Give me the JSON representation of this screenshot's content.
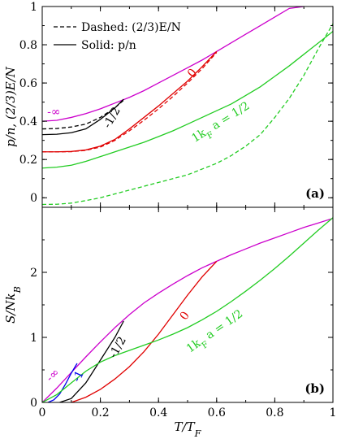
{
  "chart_data": [
    {
      "panel": "a",
      "type": "line",
      "panel_label": "(a)",
      "xlabel": "",
      "ylabel": "p/n, (2/3)E/N",
      "xlim": [
        0,
        1
      ],
      "ylim": [
        -0.05,
        1.0
      ],
      "x_ticks": [
        0,
        0.2,
        0.4,
        0.6,
        0.8,
        1
      ],
      "y_ticks": [
        0,
        0.2,
        0.4,
        0.6,
        0.8,
        1
      ],
      "y_tick_labels": [
        "0",
        "0.2",
        "0.4",
        "0.6",
        "0.8",
        "1"
      ],
      "grid": false,
      "legend": {
        "position": "top-left",
        "entries": [
          {
            "label": "Dashed: (2/3)E/N",
            "style": "dashed",
            "color": "#000000"
          },
          {
            "label": "Solid: p/n",
            "style": "solid",
            "color": "#000000"
          }
        ]
      },
      "annotations": [
        {
          "text": "-∞",
          "color": "#cc00cc",
          "x": 0.04,
          "y": 0.43,
          "rotate": 0
        },
        {
          "text": "-1/2",
          "color": "#000000",
          "x": 0.25,
          "y": 0.41,
          "rotate": -60
        },
        {
          "text": "0",
          "color": "#e00000",
          "x": 0.525,
          "y": 0.64,
          "rotate": -50
        },
        {
          "text": "1k_F a = 1/2",
          "color": "#22cc22",
          "x": 0.62,
          "y": 0.38,
          "rotate": -32
        }
      ],
      "series": [
        {
          "color": "#cc00cc",
          "style": "solid",
          "x": [
            0,
            0.05,
            0.1,
            0.15,
            0.2,
            0.25,
            0.3,
            0.35,
            0.4,
            0.45,
            0.5,
            0.55,
            0.6,
            0.65,
            0.7,
            0.75,
            0.8,
            0.85,
            0.9
          ],
          "y": [
            0.4,
            0.405,
            0.42,
            0.44,
            0.465,
            0.495,
            0.525,
            0.56,
            0.6,
            0.64,
            0.68,
            0.72,
            0.765,
            0.81,
            0.855,
            0.9,
            0.945,
            0.99,
            1.0
          ]
        },
        {
          "color": "#000000",
          "style": "solid",
          "x": [
            0,
            0.05,
            0.1,
            0.15,
            0.2,
            0.25,
            0.28
          ],
          "y": [
            0.33,
            0.332,
            0.34,
            0.36,
            0.41,
            0.47,
            0.515
          ]
        },
        {
          "color": "#000000",
          "style": "dashed",
          "x": [
            0,
            0.05,
            0.1,
            0.15,
            0.2,
            0.25,
            0.28
          ],
          "y": [
            0.36,
            0.362,
            0.37,
            0.385,
            0.42,
            0.47,
            0.51
          ]
        },
        {
          "color": "#e00000",
          "style": "solid",
          "x": [
            0,
            0.05,
            0.1,
            0.15,
            0.2,
            0.25,
            0.3,
            0.35,
            0.4,
            0.45,
            0.5,
            0.55,
            0.6
          ],
          "y": [
            0.24,
            0.24,
            0.242,
            0.25,
            0.27,
            0.305,
            0.36,
            0.42,
            0.48,
            0.545,
            0.61,
            0.685,
            0.765
          ]
        },
        {
          "color": "#e00000",
          "style": "dashed",
          "x": [
            0,
            0.05,
            0.1,
            0.15,
            0.2,
            0.25,
            0.3,
            0.35,
            0.4,
            0.45,
            0.5,
            0.55,
            0.6
          ],
          "y": [
            0.24,
            0.24,
            0.241,
            0.248,
            0.265,
            0.3,
            0.35,
            0.405,
            0.465,
            0.53,
            0.6,
            0.675,
            0.76
          ]
        },
        {
          "color": "#22cc22",
          "style": "solid",
          "x": [
            0,
            0.05,
            0.1,
            0.15,
            0.2,
            0.25,
            0.3,
            0.35,
            0.4,
            0.45,
            0.5,
            0.55,
            0.6,
            0.65,
            0.7,
            0.75,
            0.8,
            0.85,
            0.9,
            0.95,
            1.0
          ],
          "y": [
            0.155,
            0.16,
            0.17,
            0.19,
            0.215,
            0.24,
            0.265,
            0.29,
            0.32,
            0.35,
            0.385,
            0.42,
            0.455,
            0.49,
            0.535,
            0.58,
            0.635,
            0.69,
            0.75,
            0.81,
            0.87
          ]
        },
        {
          "color": "#22cc22",
          "style": "dashed",
          "x": [
            0,
            0.05,
            0.1,
            0.15,
            0.2,
            0.25,
            0.3,
            0.35,
            0.4,
            0.45,
            0.5,
            0.55,
            0.6,
            0.65,
            0.7,
            0.75,
            0.8,
            0.85,
            0.9,
            0.95,
            1.0
          ],
          "y": [
            -0.035,
            -0.034,
            -0.028,
            -0.015,
            0.0,
            0.02,
            0.04,
            0.06,
            0.08,
            0.1,
            0.12,
            0.15,
            0.18,
            0.22,
            0.27,
            0.33,
            0.42,
            0.52,
            0.64,
            0.78,
            0.91
          ]
        }
      ]
    },
    {
      "panel": "b",
      "type": "line",
      "panel_label": "(b)",
      "xlabel": "T/T_F",
      "ylabel": "S/Nk_B",
      "xlim": [
        0,
        1
      ],
      "ylim": [
        0,
        3.0
      ],
      "x_ticks": [
        0,
        0.2,
        0.4,
        0.6,
        0.8,
        1
      ],
      "x_tick_labels": [
        "0",
        "0.2",
        "0.4",
        "0.6",
        "0.8",
        "1"
      ],
      "y_ticks": [
        0,
        1,
        2
      ],
      "y_tick_labels": [
        "0",
        "1",
        "2"
      ],
      "grid": false,
      "annotations": [
        {
          "text": "-∞",
          "color": "#cc00cc",
          "x": 0.045,
          "y": 0.38,
          "rotate": -45
        },
        {
          "text": "-1",
          "color": "#0000ee",
          "x": 0.135,
          "y": 0.38,
          "rotate": -65
        },
        {
          "text": "-1/2",
          "color": "#000000",
          "x": 0.27,
          "y": 0.82,
          "rotate": -60
        },
        {
          "text": "0",
          "color": "#e00000",
          "x": 0.5,
          "y": 1.3,
          "rotate": -55
        },
        {
          "text": "1k_F a = 1/2",
          "color": "#22cc22",
          "x": 0.6,
          "y": 1.05,
          "rotate": -35
        }
      ],
      "series": [
        {
          "color": "#cc00cc",
          "style": "solid",
          "x": [
            0,
            0.05,
            0.1,
            0.15,
            0.2,
            0.25,
            0.3,
            0.35,
            0.4,
            0.45,
            0.5,
            0.55,
            0.6,
            0.65,
            0.7,
            0.75,
            0.8,
            0.85,
            0.9,
            0.95,
            1.0
          ],
          "y": [
            0.0,
            0.22,
            0.46,
            0.7,
            0.93,
            1.15,
            1.35,
            1.53,
            1.68,
            1.82,
            1.95,
            2.07,
            2.17,
            2.27,
            2.36,
            2.45,
            2.53,
            2.61,
            2.69,
            2.76,
            2.83
          ]
        },
        {
          "color": "#0000ee",
          "style": "solid",
          "x": [
            0.02,
            0.04,
            0.06,
            0.08,
            0.1,
            0.12
          ],
          "y": [
            0.0,
            0.04,
            0.13,
            0.28,
            0.45,
            0.6
          ]
        },
        {
          "color": "#000000",
          "style": "solid",
          "x": [
            0.06,
            0.1,
            0.15,
            0.2,
            0.25,
            0.28
          ],
          "y": [
            0.0,
            0.06,
            0.3,
            0.65,
            1.0,
            1.25
          ]
        },
        {
          "color": "#e00000",
          "style": "solid",
          "x": [
            0.1,
            0.15,
            0.2,
            0.25,
            0.3,
            0.35,
            0.4,
            0.45,
            0.5,
            0.55,
            0.6
          ],
          "y": [
            0.0,
            0.08,
            0.2,
            0.36,
            0.55,
            0.78,
            1.05,
            1.35,
            1.65,
            1.93,
            2.17
          ]
        },
        {
          "color": "#22cc22",
          "style": "solid",
          "x": [
            0,
            0.05,
            0.1,
            0.15,
            0.2,
            0.25,
            0.3,
            0.35,
            0.4,
            0.45,
            0.5,
            0.55,
            0.6,
            0.65,
            0.7,
            0.75,
            0.8,
            0.85,
            0.9,
            0.95,
            1.0
          ],
          "y": [
            0.0,
            0.12,
            0.3,
            0.48,
            0.62,
            0.72,
            0.8,
            0.88,
            0.96,
            1.05,
            1.15,
            1.27,
            1.4,
            1.55,
            1.71,
            1.88,
            2.06,
            2.25,
            2.45,
            2.65,
            2.84
          ]
        }
      ]
    }
  ]
}
